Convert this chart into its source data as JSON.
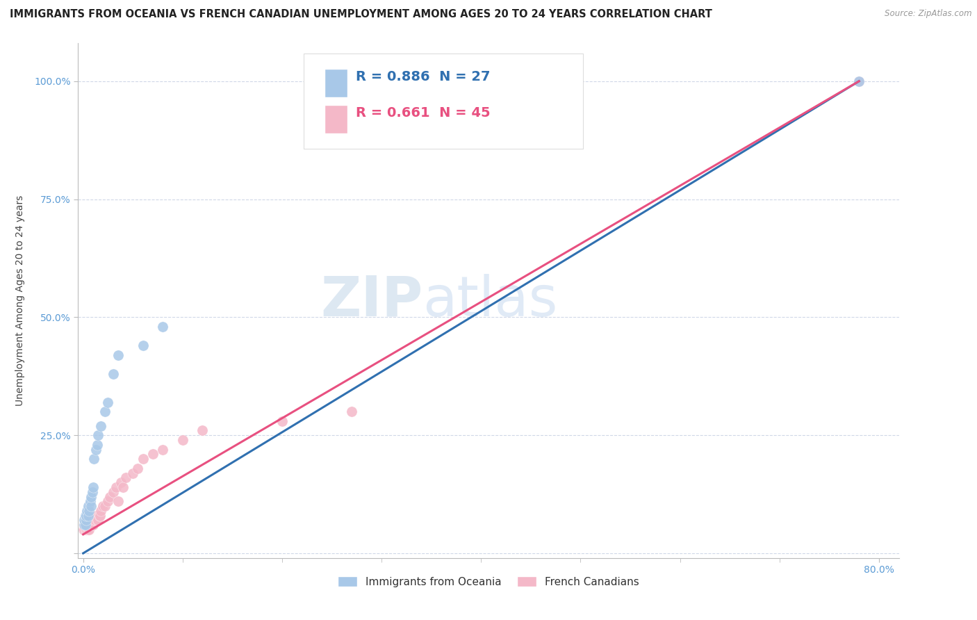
{
  "title": "IMMIGRANTS FROM OCEANIA VS FRENCH CANADIAN UNEMPLOYMENT AMONG AGES 20 TO 24 YEARS CORRELATION CHART",
  "source": "Source: ZipAtlas.com",
  "ylabel": "Unemployment Among Ages 20 to 24 years",
  "xlim": [
    -0.005,
    0.82
  ],
  "ylim": [
    -0.01,
    1.08
  ],
  "xticks": [
    0.0,
    0.8
  ],
  "xticklabels": [
    "0.0%",
    "80.0%"
  ],
  "yticks": [
    0.0,
    0.25,
    0.5,
    0.75,
    1.0
  ],
  "yticklabels": [
    "",
    "25.0%",
    "50.0%",
    "75.0%",
    "100.0%"
  ],
  "blue_color": "#a8c8e8",
  "pink_color": "#f4b8c8",
  "blue_line_color": "#3070b0",
  "pink_line_color": "#e85080",
  "legend_blue_R": "R = 0.886",
  "legend_blue_N": "N = 27",
  "legend_pink_R": "R = 0.661",
  "legend_pink_N": "N = 45",
  "tick_label_color": "#5b9bd5",
  "watermark_zip": "ZIP",
  "watermark_atlas": "atlas",
  "blue_scatter_x": [
    0.001,
    0.001,
    0.002,
    0.002,
    0.003,
    0.003,
    0.004,
    0.005,
    0.005,
    0.006,
    0.007,
    0.008,
    0.008,
    0.009,
    0.01,
    0.011,
    0.013,
    0.014,
    0.015,
    0.018,
    0.022,
    0.025,
    0.03,
    0.035,
    0.06,
    0.08,
    0.78
  ],
  "blue_scatter_y": [
    0.06,
    0.07,
    0.06,
    0.08,
    0.07,
    0.08,
    0.09,
    0.08,
    0.1,
    0.09,
    0.11,
    0.1,
    0.12,
    0.13,
    0.14,
    0.2,
    0.22,
    0.23,
    0.25,
    0.27,
    0.3,
    0.32,
    0.38,
    0.42,
    0.44,
    0.48,
    1.0
  ],
  "pink_scatter_x": [
    0.0005,
    0.001,
    0.001,
    0.002,
    0.002,
    0.003,
    0.003,
    0.004,
    0.004,
    0.005,
    0.005,
    0.006,
    0.007,
    0.007,
    0.008,
    0.009,
    0.01,
    0.011,
    0.012,
    0.013,
    0.014,
    0.015,
    0.016,
    0.017,
    0.018,
    0.02,
    0.022,
    0.025,
    0.027,
    0.03,
    0.033,
    0.035,
    0.038,
    0.04,
    0.043,
    0.05,
    0.055,
    0.06,
    0.07,
    0.08,
    0.1,
    0.12,
    0.2,
    0.27,
    0.78
  ],
  "pink_scatter_y": [
    0.05,
    0.05,
    0.06,
    0.05,
    0.06,
    0.05,
    0.06,
    0.05,
    0.07,
    0.05,
    0.06,
    0.05,
    0.06,
    0.07,
    0.06,
    0.06,
    0.06,
    0.07,
    0.07,
    0.08,
    0.07,
    0.07,
    0.08,
    0.08,
    0.09,
    0.1,
    0.1,
    0.11,
    0.12,
    0.13,
    0.14,
    0.11,
    0.15,
    0.14,
    0.16,
    0.17,
    0.18,
    0.2,
    0.21,
    0.22,
    0.24,
    0.26,
    0.28,
    0.3,
    1.0
  ],
  "blue_trend_x": [
    0.0,
    0.78
  ],
  "blue_trend_y": [
    0.0,
    1.0
  ],
  "pink_trend_x": [
    0.0,
    0.78
  ],
  "pink_trend_y": [
    0.04,
    1.0
  ],
  "background_color": "#ffffff",
  "grid_color": "#d0d8e8",
  "title_fontsize": 10.5,
  "axis_label_fontsize": 10,
  "tick_fontsize": 10,
  "legend_fontsize": 13,
  "marker_size": 120
}
